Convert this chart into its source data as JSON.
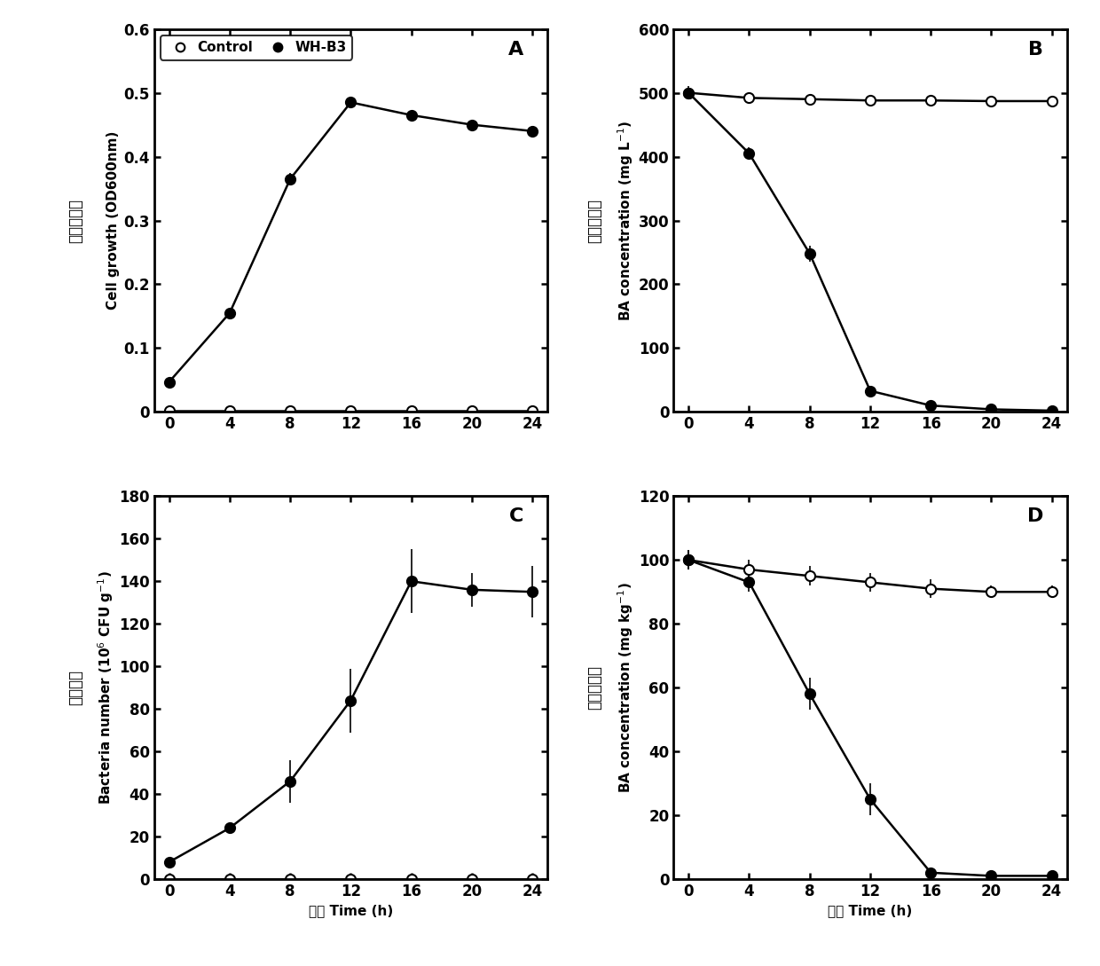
{
  "time": [
    0,
    4,
    8,
    12,
    16,
    20,
    24
  ],
  "panel_A": {
    "title": "A",
    "wh_b3": [
      0.047,
      0.155,
      0.365,
      0.485,
      0.465,
      0.45,
      0.44
    ],
    "wh_b3_err": [
      0.003,
      0.005,
      0.01,
      0.008,
      0.007,
      0.006,
      0.005
    ],
    "control": [
      0.002,
      0.002,
      0.002,
      0.002,
      0.002,
      0.002,
      0.002
    ],
    "control_err": [
      0.001,
      0.001,
      0.001,
      0.001,
      0.001,
      0.001,
      0.001
    ],
    "ylabel_cn": "细菌生长量",
    "ylabel_en": "Cell growth (OD600nm)",
    "ylim": [
      0,
      0.6
    ],
    "yticks": [
      0,
      0.1,
      0.2,
      0.3,
      0.4,
      0.5,
      0.6
    ],
    "ytick_labels": [
      "0",
      "0.1",
      "0.2",
      "0.3",
      "0.4",
      "0.5",
      "0.6"
    ]
  },
  "panel_B": {
    "title": "B",
    "wh_b3": [
      500,
      405,
      248,
      33,
      10,
      4,
      2
    ],
    "wh_b3_err": [
      10,
      10,
      12,
      5,
      3,
      2,
      1
    ],
    "control": [
      500,
      492,
      490,
      488,
      488,
      487,
      487
    ],
    "control_err": [
      8,
      5,
      5,
      5,
      5,
      5,
      5
    ],
    "ylabel_cn": "苯甲酸含量",
    "ylabel_en": "BA concentration (mg L$^{-1}$)",
    "ylim": [
      0,
      600
    ],
    "yticks": [
      0,
      100,
      200,
      300,
      400,
      500,
      600
    ],
    "ytick_labels": [
      "0",
      "100",
      "200",
      "300",
      "400",
      "500",
      "600"
    ]
  },
  "panel_C": {
    "title": "C",
    "wh_b3": [
      8,
      24,
      46,
      84,
      140,
      136,
      135
    ],
    "wh_b3_err": [
      1,
      2,
      10,
      15,
      15,
      8,
      12
    ],
    "control": [
      0,
      0,
      0,
      0,
      0,
      0,
      0
    ],
    "control_err": [
      0,
      0,
      0,
      0,
      0,
      0,
      0
    ],
    "ylabel_cn": "细菌数量",
    "ylabel_en": "Bacteria number (10$^{6}$ CFU g$^{-1}$)",
    "ylim": [
      0,
      180
    ],
    "yticks": [
      0,
      20,
      40,
      60,
      80,
      100,
      120,
      140,
      160,
      180
    ],
    "ytick_labels": [
      "0",
      "20",
      "40",
      "60",
      "80",
      "100",
      "120",
      "140",
      "160",
      "180"
    ]
  },
  "panel_D": {
    "title": "D",
    "wh_b3": [
      100,
      93,
      58,
      25,
      2,
      1,
      1
    ],
    "wh_b3_err": [
      3,
      3,
      5,
      5,
      1,
      0.5,
      0.5
    ],
    "control": [
      100,
      97,
      95,
      93,
      91,
      90,
      90
    ],
    "control_err": [
      3,
      3,
      3,
      3,
      3,
      2,
      2
    ],
    "ylabel_cn": "苯甲酸含量",
    "ylabel_en": "BA concentration (mg kg$^{-1}$)",
    "ylim": [
      0,
      120
    ],
    "yticks": [
      0,
      20,
      40,
      60,
      80,
      100,
      120
    ],
    "ytick_labels": [
      "0",
      "20",
      "40",
      "60",
      "80",
      "100",
      "120"
    ]
  },
  "xlabel_cn": "时间",
  "xlabel_en": "Time (h)",
  "xticks": [
    0,
    4,
    8,
    12,
    16,
    20,
    24
  ],
  "legend_control": "Control",
  "legend_wh": "WH-B3",
  "line_color": "black",
  "fill_color": "black",
  "open_facecolor": "white",
  "markersize": 8,
  "linewidth": 1.8,
  "background_color": "white"
}
